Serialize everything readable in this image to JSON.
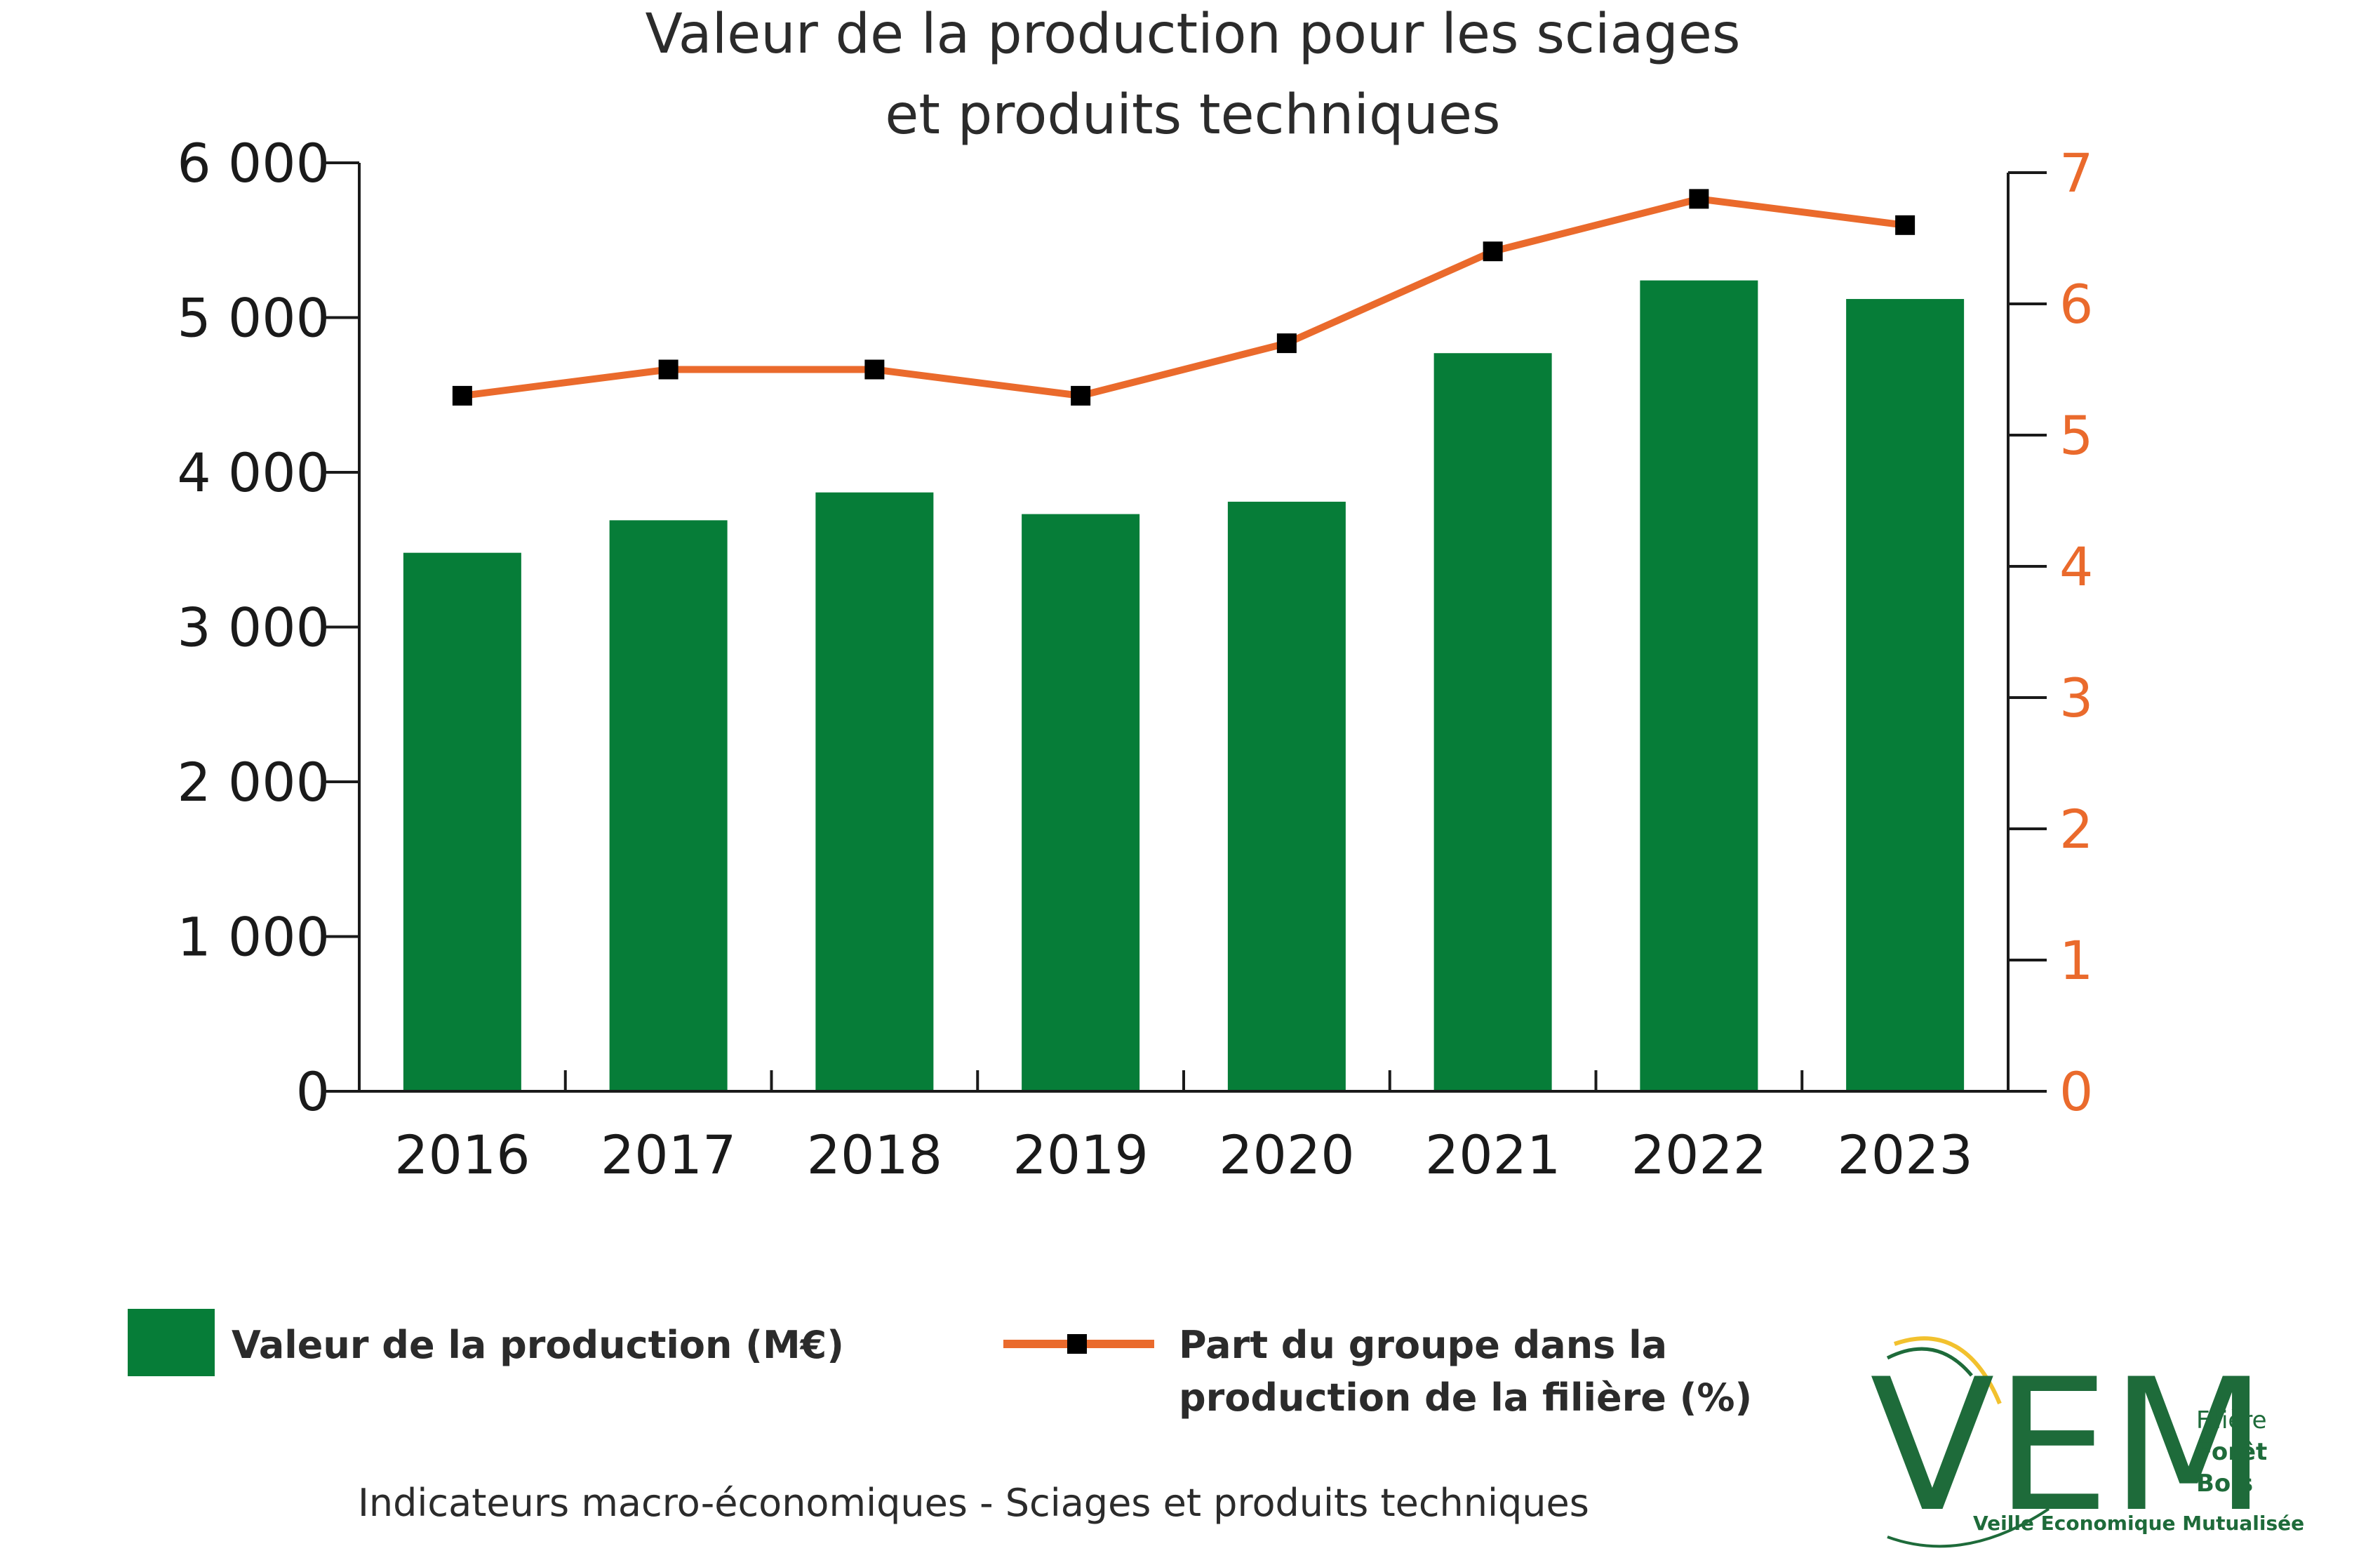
{
  "chart_data": {
    "type": "bar",
    "title_lines": [
      "Valeur de la production pour les sciages",
      "et produits techniques"
    ],
    "categories": [
      "2016",
      "2017",
      "2018",
      "2019",
      "2020",
      "2021",
      "2022",
      "2023"
    ],
    "series": [
      {
        "name": "Valeur de la production (M€)",
        "type": "bar",
        "axis": "left",
        "color": "#067d38",
        "values": [
          3480,
          3690,
          3870,
          3730,
          3810,
          4770,
          5240,
          5120
        ]
      },
      {
        "name": "Part du groupe dans la production de la filière (%)",
        "type": "line",
        "axis": "right",
        "color": "#ea6a2c",
        "marker_color": "#000000",
        "values": [
          5.3,
          5.5,
          5.5,
          5.3,
          5.7,
          6.4,
          6.8,
          6.6
        ]
      }
    ],
    "y_left": {
      "ylim": [
        0,
        6000
      ],
      "ticks": [
        0,
        1000,
        2000,
        3000,
        4000,
        5000,
        6000
      ],
      "tick_labels": [
        "0",
        "1 000",
        "2 000",
        "3 000",
        "4 000",
        "5 000",
        "6 000"
      ]
    },
    "y_right": {
      "ylim": [
        0,
        7
      ],
      "ticks": [
        0,
        1,
        2,
        3,
        4,
        5,
        6,
        7
      ],
      "tick_labels": [
        "0",
        "1",
        "2",
        "3",
        "4",
        "5",
        "6",
        "7"
      ],
      "color": "#ea6a2c"
    },
    "legend": {
      "placement": "bottom",
      "bar_label": "Valeur de la production (M€)",
      "line_label_lines": [
        "Part du groupe dans la",
        "production de la filière (%)"
      ]
    },
    "grid": false
  },
  "footer": {
    "caption": "Indicateurs macro-économiques - Sciages et produits techniques"
  },
  "logo": {
    "letters": "VEM",
    "line1": "Filière",
    "line2": "Forêt",
    "line3": "Bois",
    "tagline": "Veille Economique Mutualisée",
    "color": "#1e6b3a",
    "accent_color": "#f2c12e"
  }
}
